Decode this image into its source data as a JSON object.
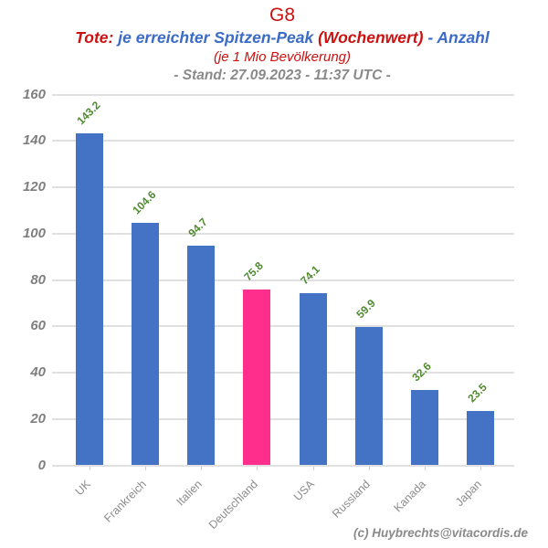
{
  "header": {
    "title": "G8",
    "subtitle_segments": [
      {
        "text": "Tote:",
        "color": "#CC1111"
      },
      {
        "text": " je erreichter Spitzen-Peak ",
        "color": "#3A6BC8"
      },
      {
        "text": " (Wochenwert)",
        "color": "#CC1111"
      },
      {
        "text": " - Anzahl",
        "color": "#3A6BC8"
      }
    ],
    "note": "(je 1 Mio Bevölkerung)",
    "timestamp_line": "- Stand: 27.09.2023 - 11:37 UTC -"
  },
  "footer": {
    "credit": "(c) Huybrechts@vitacordis.de"
  },
  "colors": {
    "title_red": "#CC1111",
    "title_blue": "#3A6BC8",
    "bar_default": "#4472C4",
    "bar_highlight": "#FF2D8C",
    "value_label_green": "#4F8B2F",
    "axis_text_gray": "#7F7F7F",
    "gridline_gray": "#E0E0E0",
    "tick_gray": "#CFCFCF"
  },
  "chart_data": {
    "type": "bar",
    "title": "G8",
    "subtitle": "Tote: je erreichter Spitzen-Peak (Wochenwert) - Anzahl",
    "note": "(je 1 Mio Bevölkerung)",
    "stand": "- Stand: 27.09.2023 - 11:37 UTC -",
    "categories": [
      "UK",
      "Frankreich",
      "Italien",
      "Deutschland",
      "USA",
      "Russland",
      "Kanada",
      "Japan"
    ],
    "values": [
      143.2,
      104.6,
      94.7,
      75.8,
      74.1,
      59.9,
      32.6,
      23.5
    ],
    "highlighted_category": "Deutschland",
    "yticks": [
      0,
      20,
      40,
      60,
      80,
      100,
      120,
      140,
      160
    ],
    "ylim": [
      0,
      160
    ],
    "xlabel": "",
    "ylabel": "",
    "grid": true,
    "legend": false,
    "value_labels_rotation_deg": -45,
    "category_labels_rotation_deg": -45
  }
}
